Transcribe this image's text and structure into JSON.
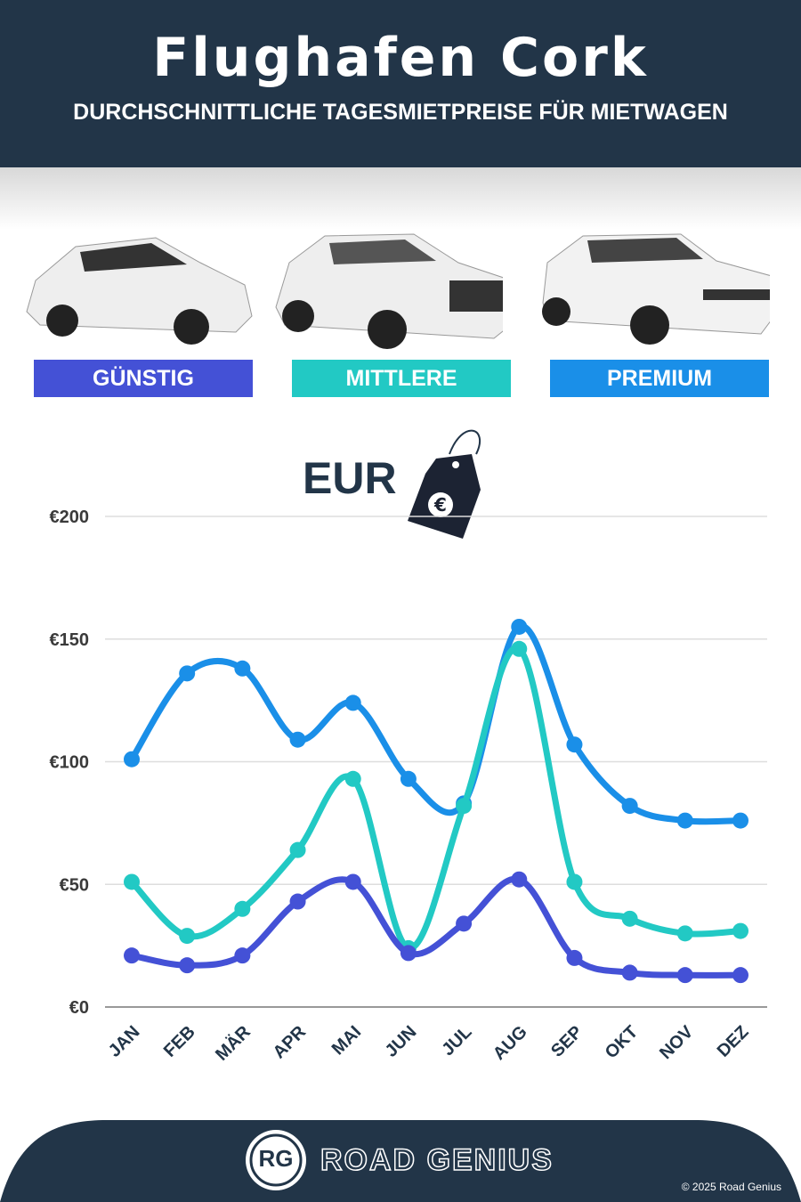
{
  "header": {
    "title": "Flughafen Cork",
    "subtitle": "DURCHSCHNITTLICHE TAGESMIETPREISE FÜR MIETWAGEN"
  },
  "categories": [
    {
      "label": "GÜNSTIG",
      "color": "#4451d6"
    },
    {
      "label": "MITTLERE",
      "color": "#22c9c4"
    },
    {
      "label": "PREMIUM",
      "color": "#1a8fe8"
    }
  ],
  "currency_label": "EUR",
  "footer": {
    "brand": "ROAD GENIUS",
    "logo": "RG",
    "copyright": "© 2025 Road Genius"
  },
  "chart_data": {
    "type": "line",
    "categories": [
      "JAN",
      "FEB",
      "MÄR",
      "APR",
      "MAI",
      "JUN",
      "JUL",
      "AUG",
      "SEP",
      "OKT",
      "NOV",
      "DEZ"
    ],
    "yticks": [
      "€0",
      "€50",
      "€100",
      "€150",
      "€200"
    ],
    "ylim": [
      0,
      200
    ],
    "grid": true,
    "series": [
      {
        "name": "PREMIUM",
        "color": "#1a8fe8",
        "values": [
          101,
          136,
          138,
          109,
          124,
          93,
          83,
          155,
          107,
          82,
          76,
          76
        ]
      },
      {
        "name": "MITTLERE",
        "color": "#22c9c4",
        "values": [
          51,
          29,
          40,
          64,
          93,
          24,
          82,
          146,
          51,
          36,
          30,
          31
        ]
      },
      {
        "name": "GÜNSTIG",
        "color": "#4451d6",
        "values": [
          21,
          17,
          21,
          43,
          51,
          22,
          34,
          52,
          20,
          14,
          13,
          13
        ]
      }
    ]
  }
}
